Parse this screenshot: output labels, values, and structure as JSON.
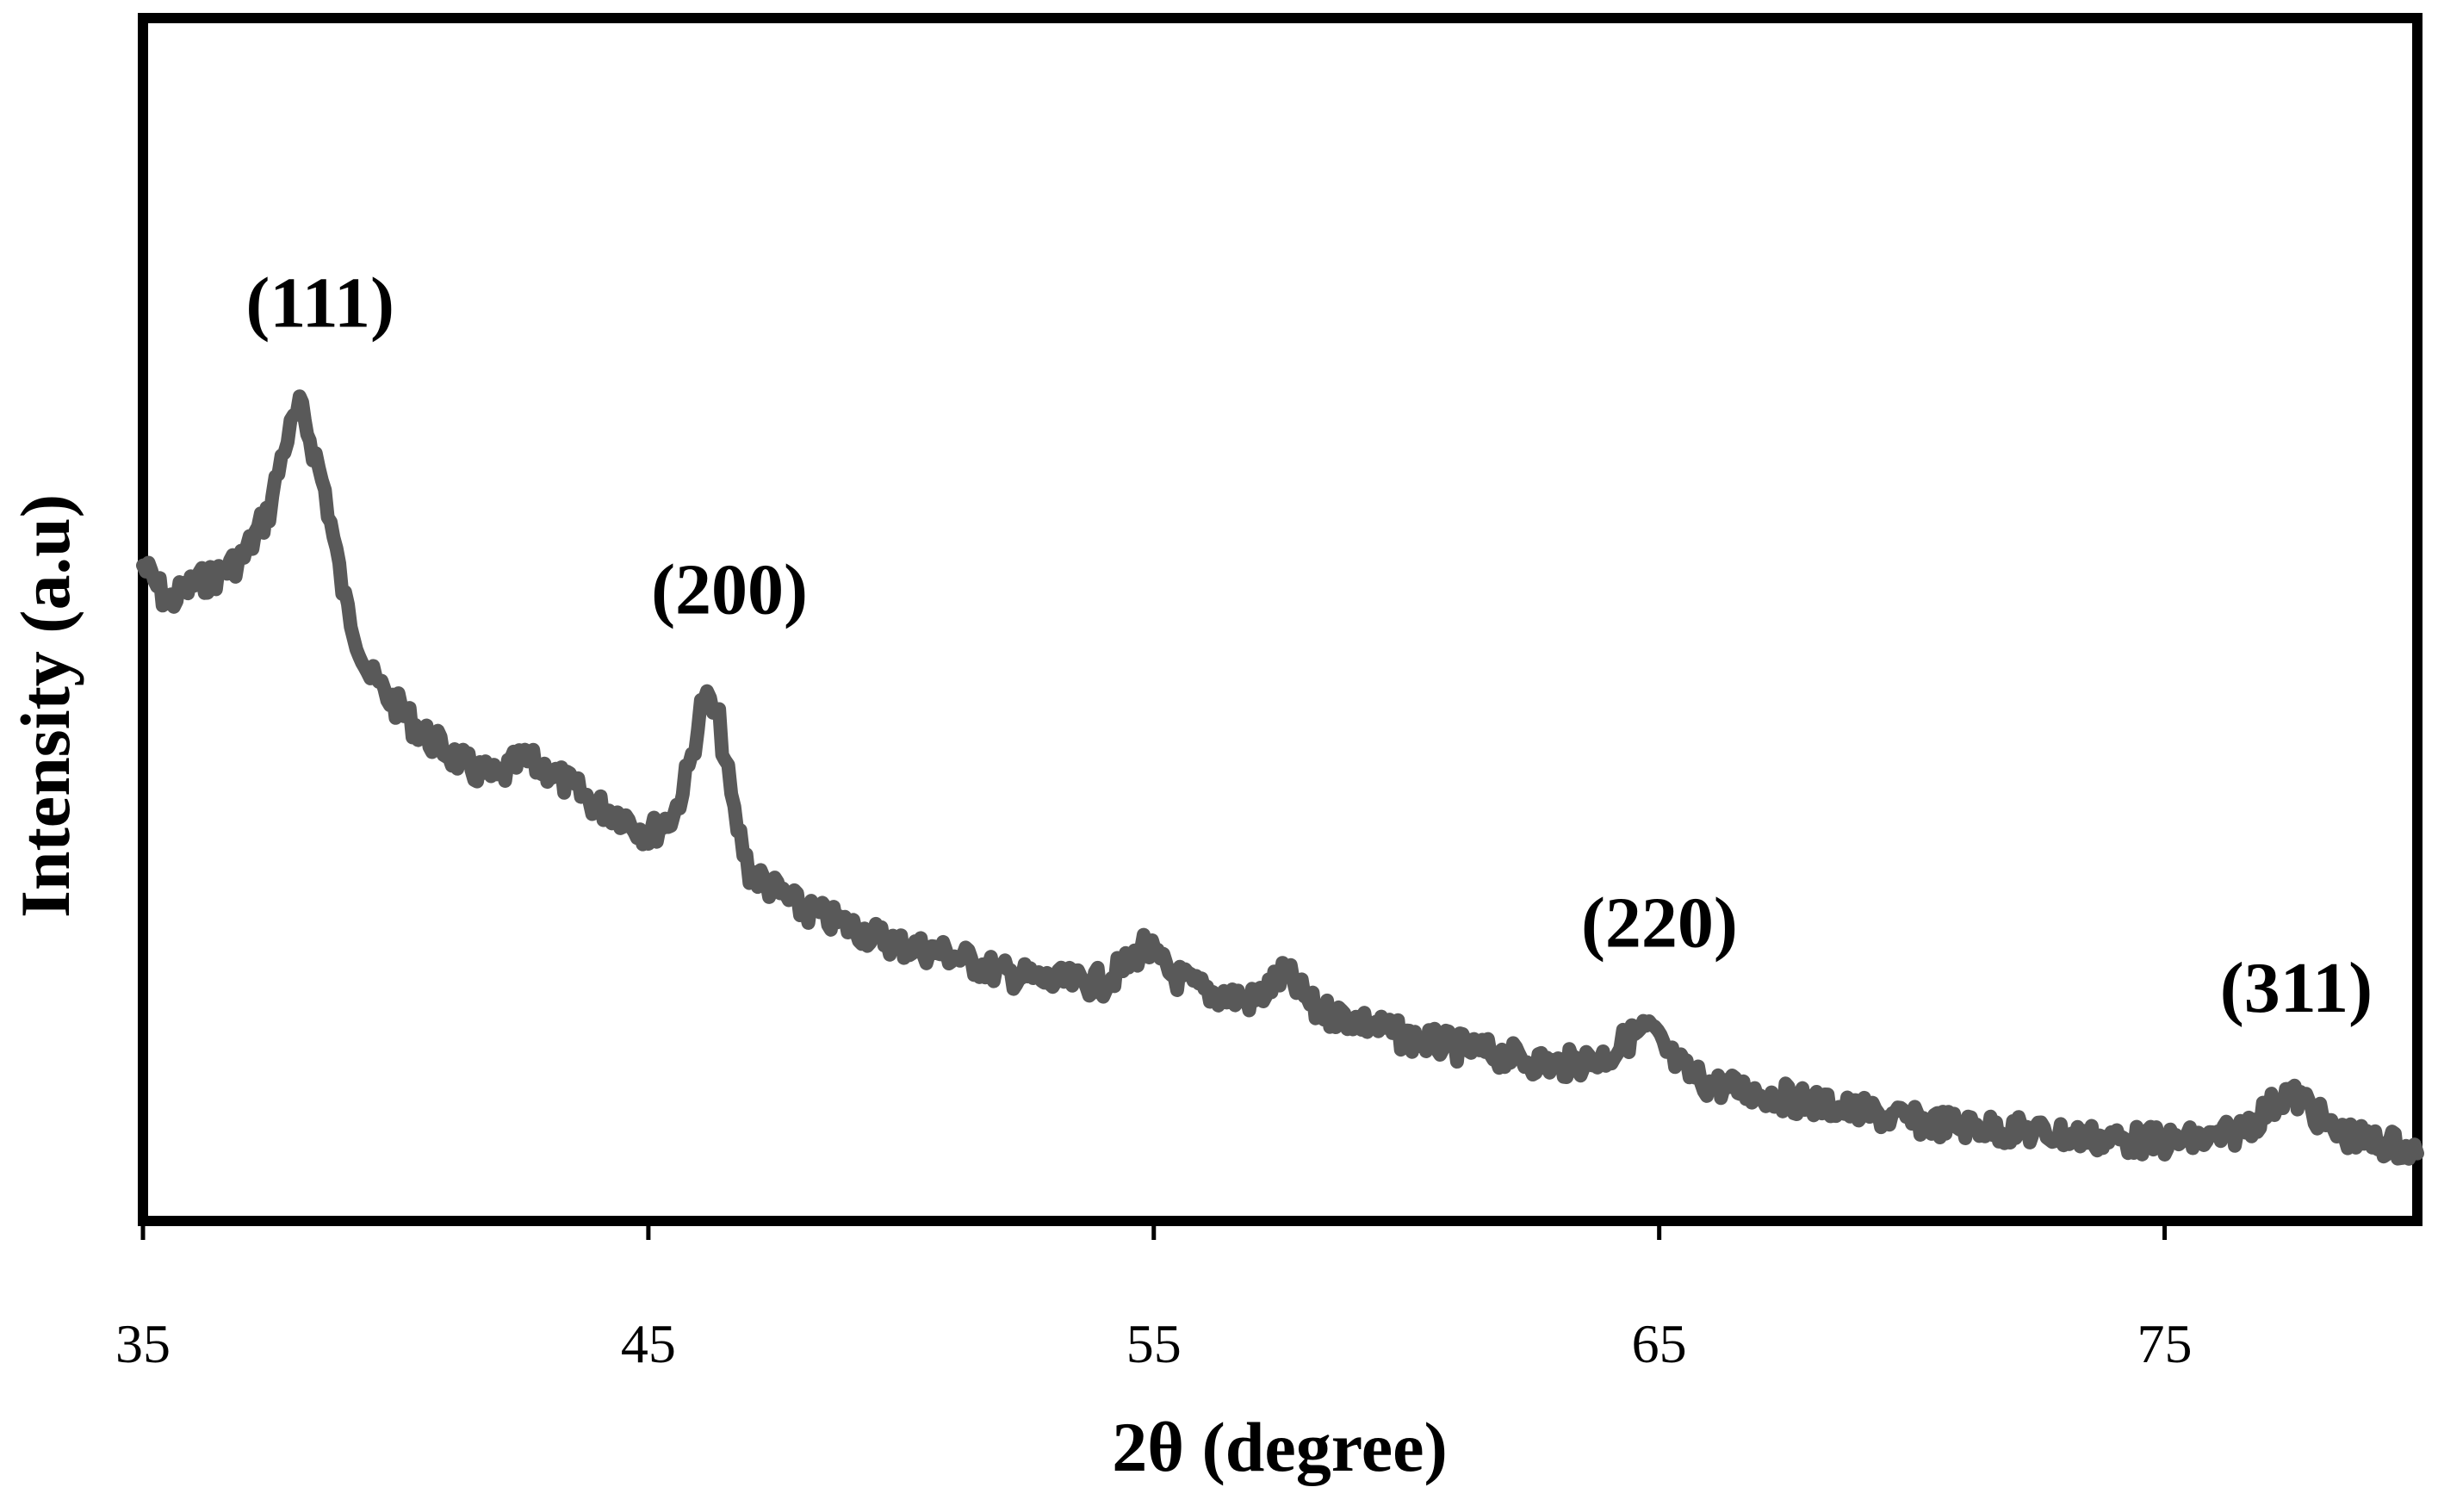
{
  "chart_data": {
    "type": "line",
    "title": "",
    "xlabel": "2θ (degree)",
    "ylabel": "Intensity (a.u)",
    "xlim": [
      35,
      80
    ],
    "ylim": [
      0,
      100
    ],
    "x_ticks": [
      35,
      45,
      55,
      65,
      75
    ],
    "y_ticks_shown": false,
    "grid": false,
    "legend": "none",
    "line_color": "#595959",
    "series": [
      {
        "x": [
          35.0,
          35.5,
          36.0,
          36.5,
          37.0,
          37.5,
          37.8,
          38.1,
          38.3,
          38.6,
          39.0,
          39.5,
          40.0,
          40.5,
          41.0,
          41.5,
          42.0,
          42.5,
          43.0,
          43.5,
          44.0,
          44.5,
          45.0,
          45.5,
          45.8,
          46.1,
          46.4,
          46.7,
          47.0,
          47.5,
          48.0,
          49.0,
          50.0,
          51.0,
          52.0,
          53.0,
          54.0,
          54.5,
          54.8,
          55.3,
          56.0,
          57.0,
          57.6,
          58.2,
          59.0,
          60.0,
          61.0,
          62.0,
          63.0,
          64.0,
          64.4,
          64.8,
          65.2,
          65.6,
          66.0,
          67.0,
          68.0,
          69.0,
          70.0,
          71.0,
          72.0,
          73.0,
          74.0,
          75.0,
          76.0,
          76.5,
          77.0,
          77.4,
          77.8,
          78.3,
          79.0,
          79.5,
          80.0
        ],
        "y": [
          64,
          60,
          62,
          63,
          65,
          70,
          77,
          81,
          78,
          72,
          60,
          52,
          49,
          46,
          44,
          42,
          41,
          43,
          42,
          40,
          38,
          37,
          35,
          37,
          42,
          50,
          47,
          37,
          31,
          29,
          27,
          25,
          23,
          22,
          20,
          19,
          19,
          21,
          23,
          20,
          18,
          17,
          20,
          16,
          15,
          13,
          12,
          11,
          10,
          11,
          13,
          14,
          11,
          9,
          8,
          7,
          6,
          5,
          4,
          3.5,
          3,
          2.5,
          2,
          1.8,
          2,
          3,
          5,
          7,
          6,
          3,
          1.8,
          1.5,
          0.5
        ]
      }
    ],
    "annotations": [
      {
        "text": "(111)",
        "x": 38.3,
        "y": 81
      },
      {
        "text": "(200)",
        "x": 46.4,
        "y": 50
      },
      {
        "text": "(220)",
        "x": 64.8,
        "y": 14
      },
      {
        "text": "(311)",
        "x": 77.4,
        "y": 7
      }
    ]
  }
}
